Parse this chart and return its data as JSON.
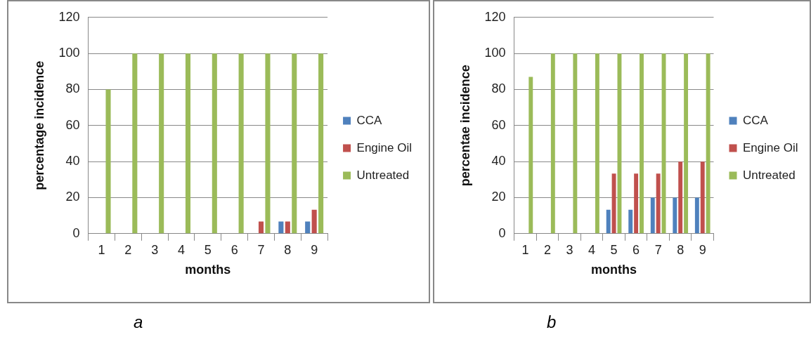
{
  "chart_data": [
    {
      "type": "bar",
      "xlabel": "months",
      "ylabel": "percentage incidence",
      "categories": [
        "1",
        "2",
        "3",
        "4",
        "5",
        "6",
        "7",
        "8",
        "9"
      ],
      "series": [
        {
          "name": "CCA",
          "color": "#4f81bd",
          "values": [
            0,
            0,
            0,
            0,
            0,
            0,
            0,
            6.7,
            6.7
          ]
        },
        {
          "name": "Engine Oil",
          "color": "#c0504d",
          "values": [
            0,
            0,
            0,
            0,
            0,
            0,
            6.7,
            6.7,
            13.3
          ]
        },
        {
          "name": "Untreated",
          "color": "#9bbb59",
          "values": [
            80,
            100,
            100,
            100,
            100,
            100,
            100,
            100,
            100
          ]
        }
      ],
      "ylim": [
        0,
        120
      ],
      "yticks": [
        0,
        20,
        40,
        60,
        80,
        100,
        120
      ],
      "grid": "y",
      "legend": "right",
      "annotations": [
        "a"
      ]
    },
    {
      "type": "bar",
      "xlabel": "months",
      "ylabel": "percentae incidence",
      "categories": [
        "1",
        "2",
        "3",
        "4",
        "5",
        "6",
        "7",
        "8",
        "9"
      ],
      "series": [
        {
          "name": "CCA",
          "color": "#4f81bd",
          "values": [
            0,
            0,
            0,
            0,
            13.3,
            13.3,
            20,
            20,
            20
          ]
        },
        {
          "name": "Engine Oil",
          "color": "#c0504d",
          "values": [
            0,
            0,
            0,
            0,
            33.3,
            33.3,
            33.3,
            40,
            40
          ]
        },
        {
          "name": "Untreated",
          "color": "#9bbb59",
          "values": [
            87,
            100,
            100,
            100,
            100,
            100,
            100,
            100,
            100
          ]
        }
      ],
      "ylim": [
        0,
        120
      ],
      "yticks": [
        0,
        20,
        40,
        60,
        80,
        100,
        120
      ],
      "grid": "y",
      "legend": "right",
      "annotations": [
        "b"
      ]
    }
  ]
}
